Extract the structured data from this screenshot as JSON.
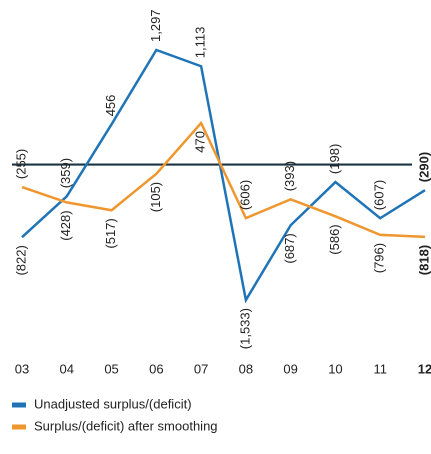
{
  "chart_data": {
    "type": "line",
    "categories": [
      "03",
      "04",
      "05",
      "06",
      "07",
      "08",
      "09",
      "10",
      "11",
      "12"
    ],
    "series": [
      {
        "name": "Unadjusted surplus/(deficit)",
        "color": "#1f74b8",
        "values": [
          -822,
          -359,
          456,
          1297,
          1113,
          -1533,
          -687,
          -198,
          -607,
          -290
        ],
        "value_labels": [
          "(822)",
          "(359)",
          "456",
          "1,297",
          "1,113",
          "(1,533)",
          "(687)",
          "(198)",
          "(607)",
          "(290)"
        ]
      },
      {
        "name": "Surplus/(deficit) after smoothing",
        "color": "#f0962e",
        "values": [
          -255,
          -428,
          -517,
          -105,
          470,
          -606,
          -393,
          -586,
          -796,
          -818
        ],
        "value_labels": [
          "(255)",
          "(428)",
          "(517)",
          "(105)",
          "470",
          "(606)",
          "(393)",
          "(586)",
          "(796)",
          "(818)"
        ]
      }
    ]
  }
}
